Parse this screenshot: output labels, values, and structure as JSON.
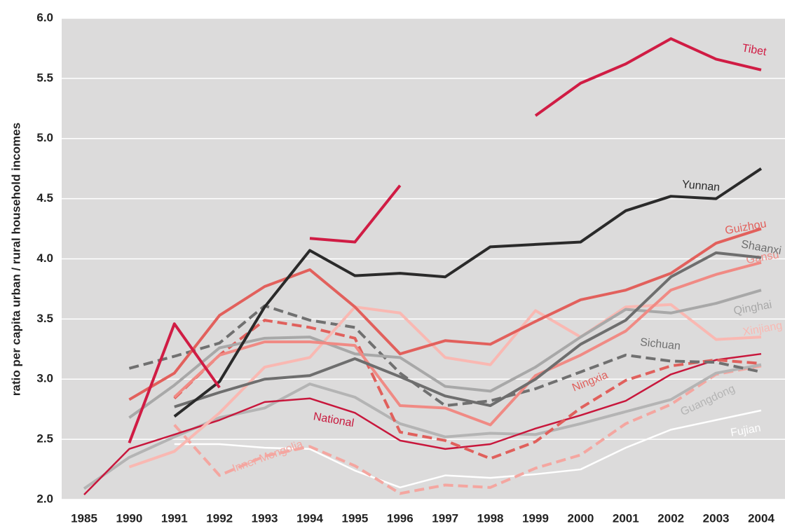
{
  "chart_data": {
    "type": "line",
    "y_label": "ratio per capita urban / rural household incomes",
    "categories": [
      "1985",
      "1990",
      "1991",
      "1992",
      "1993",
      "1994",
      "1995",
      "1996",
      "1997",
      "1998",
      "1999",
      "2000",
      "2001",
      "2002",
      "2003",
      "2004"
    ],
    "ylim": [
      2.0,
      6.0
    ],
    "yticks": [
      {
        "value": 2.0,
        "label": "2.0"
      },
      {
        "value": 2.5,
        "label": "2.5"
      },
      {
        "value": 3.0,
        "label": "3.0"
      },
      {
        "value": 3.5,
        "label": "3.5"
      },
      {
        "value": 4.0,
        "label": "4.0"
      },
      {
        "value": 4.5,
        "label": "4.5"
      },
      {
        "value": 5.0,
        "label": "5.0"
      },
      {
        "value": 5.5,
        "label": "5.5"
      },
      {
        "value": 6.0,
        "label": "6.0"
      }
    ],
    "grid": true,
    "series": [
      {
        "name": "Fujian",
        "color": "#ffffff",
        "values": [
          null,
          null,
          2.46,
          2.46,
          2.43,
          2.42,
          2.24,
          2.1,
          2.2,
          2.18,
          2.21,
          2.25,
          2.43,
          2.58,
          2.66,
          2.74
        ]
      },
      {
        "name": "Inner Mongolia",
        "color": "#f4a6a0",
        "dashed": true,
        "values": [
          null,
          null,
          2.62,
          2.2,
          2.36,
          2.44,
          2.28,
          2.05,
          2.12,
          2.1,
          2.26,
          2.37,
          2.63,
          2.79,
          3.04,
          3.11
        ]
      },
      {
        "name": "Guangdong",
        "color": "#b4b4b4",
        "values": [
          2.09,
          2.35,
          2.52,
          2.68,
          2.76,
          2.96,
          2.85,
          2.63,
          2.52,
          2.55,
          2.54,
          2.63,
          2.73,
          2.83,
          3.05,
          3.12
        ]
      },
      {
        "name": "National",
        "color": "#c8173c",
        "values": [
          2.04,
          2.42,
          2.54,
          2.66,
          2.81,
          2.84,
          2.72,
          2.49,
          2.42,
          2.46,
          2.59,
          2.7,
          2.82,
          3.04,
          3.16,
          3.21
        ]
      },
      {
        "name": "Ningxia",
        "color": "#e0605c",
        "dashed": true,
        "values": [
          null,
          null,
          2.84,
          3.2,
          3.49,
          3.43,
          3.34,
          2.56,
          2.49,
          2.34,
          2.48,
          2.76,
          2.99,
          3.11,
          3.16,
          3.13
        ]
      },
      {
        "name": "Sichuan",
        "color": "#707070",
        "dashed": true,
        "values": [
          null,
          3.09,
          3.19,
          3.3,
          3.61,
          3.49,
          3.43,
          3.05,
          2.78,
          2.82,
          2.92,
          3.06,
          3.2,
          3.15,
          3.14,
          3.06
        ]
      },
      {
        "name": "Xinjiang",
        "color": "#f9b8b2",
        "values": [
          null,
          2.27,
          2.4,
          2.72,
          3.1,
          3.18,
          3.6,
          3.55,
          3.18,
          3.12,
          3.57,
          3.35,
          3.6,
          3.62,
          3.33,
          3.35
        ]
      },
      {
        "name": "Qinghai",
        "color": "#a8a8a8",
        "values": [
          null,
          2.68,
          2.95,
          3.26,
          3.34,
          3.35,
          3.21,
          3.18,
          2.94,
          2.9,
          3.1,
          3.35,
          3.58,
          3.55,
          3.63,
          3.74
        ]
      },
      {
        "name": "Gansu",
        "color": "#f08a84",
        "values": [
          null,
          null,
          2.85,
          3.2,
          3.31,
          3.31,
          3.28,
          2.78,
          2.76,
          2.62,
          3.03,
          3.2,
          3.4,
          3.74,
          3.87,
          3.97
        ]
      },
      {
        "name": "Shaanxi",
        "color": "#6e6e6e",
        "values": [
          null,
          null,
          2.77,
          2.89,
          3.0,
          3.03,
          3.17,
          3.02,
          2.86,
          2.78,
          3.0,
          3.29,
          3.49,
          3.85,
          4.05,
          4.01
        ]
      },
      {
        "name": "Guizhou",
        "color": "#e2605c",
        "values": [
          null,
          2.83,
          3.05,
          3.53,
          3.77,
          3.91,
          3.6,
          3.21,
          3.32,
          3.29,
          3.48,
          3.66,
          3.74,
          3.88,
          4.13,
          4.25
        ]
      },
      {
        "name": "Yunnan",
        "color": "#2a2a2a",
        "values": [
          null,
          null,
          2.69,
          2.98,
          3.6,
          4.07,
          3.86,
          3.88,
          3.85,
          4.1,
          4.12,
          4.14,
          4.4,
          4.52,
          4.5,
          4.75
        ]
      },
      {
        "name": "Tibet",
        "color": "#d01c44",
        "values": [
          null,
          2.47,
          3.46,
          2.93,
          null,
          4.17,
          4.14,
          4.61,
          null,
          null,
          5.19,
          5.46,
          5.62,
          5.83,
          5.66,
          5.57
        ]
      }
    ]
  }
}
